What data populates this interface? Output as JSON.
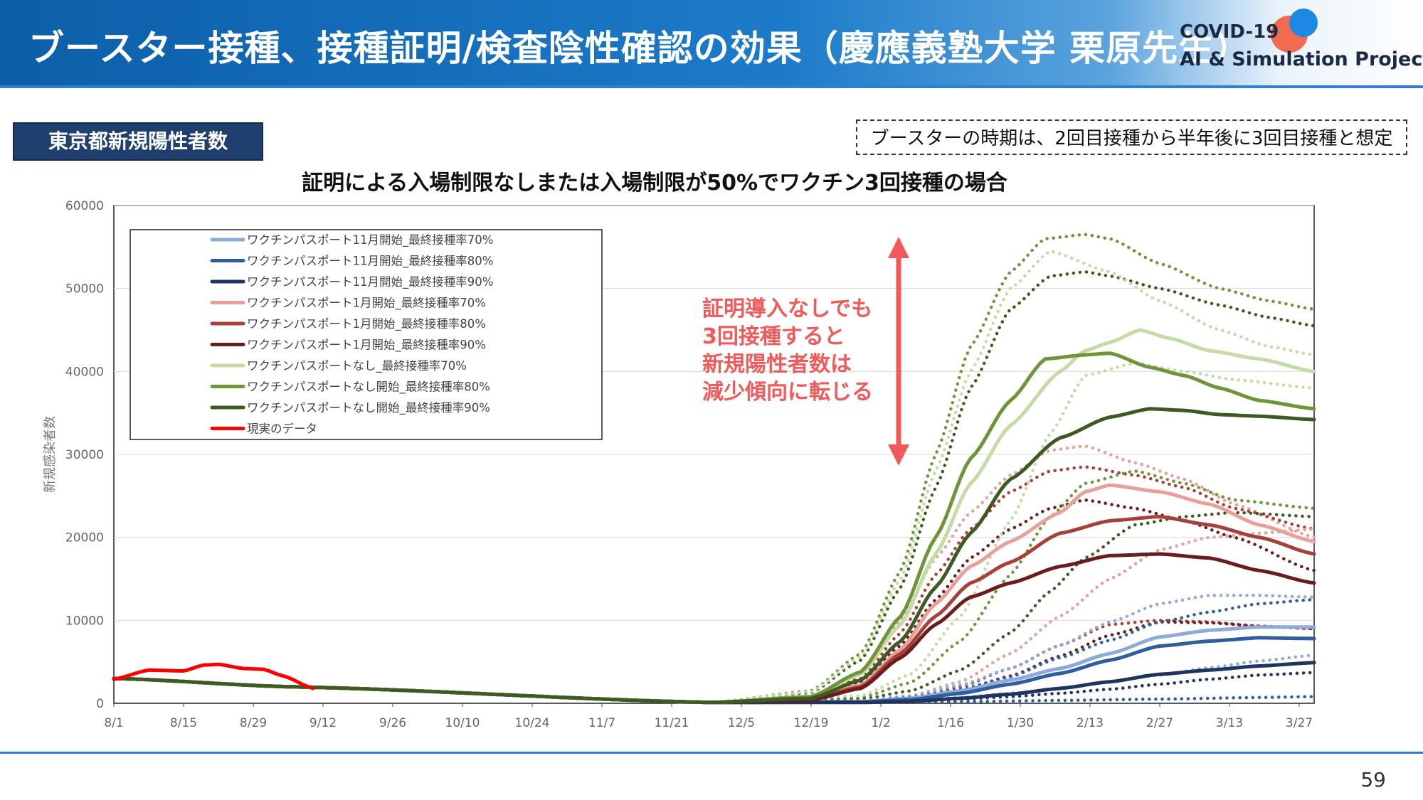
{
  "header": {
    "title": "ブースター接種、接種証明/検査陰性確認の効果（慶應義塾大学 栗原先生）",
    "logo_line1": "COVID-19",
    "logo_line2": "AI & Simulation Project"
  },
  "section_tag": "東京都新規陽性者数",
  "note": "ブースターの時期は、2回目接種から半年後に3回目接種と想定",
  "annotation": {
    "lines": [
      "証明導入なしでも",
      "3回接種すると",
      "新規陽性者数は",
      "減少傾向に転じる"
    ],
    "color": "#f05a5a"
  },
  "page_number": "59",
  "chart_data": {
    "type": "line",
    "title": "証明による入場制限なしまたは入場制限が50%でワクチン3回接種の場合",
    "ylabel": "新規感染者数",
    "xlabel": "",
    "ylim": [
      0,
      60000
    ],
    "yticks": [
      0,
      10000,
      20000,
      30000,
      40000,
      50000,
      60000
    ],
    "x_start": "8/1",
    "x_days": 242,
    "xtick_labels": [
      "8/1",
      "8/15",
      "8/29",
      "9/12",
      "9/26",
      "10/10",
      "10/24",
      "11/7",
      "11/21",
      "12/5",
      "12/19",
      "1/2",
      "1/16",
      "1/30",
      "2/13",
      "2/27",
      "3/13",
      "3/27"
    ],
    "legend_position": "top-left",
    "grid": true,
    "series": [
      {
        "name": "ワクチンパスポート11月開始_最終接種率70%",
        "color": "#8eaadb",
        "width": 5,
        "style": "solid",
        "x": [
          0,
          35,
          120,
          150,
          160,
          170,
          180,
          190,
          200,
          210,
          220,
          230,
          241
        ],
        "values": [
          3000,
          2000,
          100,
          200,
          600,
          1500,
          2800,
          4200,
          6000,
          8000,
          8800,
          9200,
          9200
        ]
      },
      {
        "name": "ワクチンパスポート11月開始_最終接種率80%",
        "color": "#2e5e9b",
        "width": 5,
        "style": "solid",
        "x": [
          0,
          35,
          120,
          150,
          160,
          170,
          180,
          190,
          200,
          210,
          220,
          230,
          241
        ],
        "values": [
          3000,
          2000,
          100,
          150,
          450,
          1200,
          2300,
          3600,
          5200,
          6900,
          7500,
          7900,
          7800
        ]
      },
      {
        "name": "ワクチンパスポート11月開始_最終接種率90%",
        "color": "#1f3560",
        "width": 5,
        "style": "solid",
        "x": [
          0,
          35,
          120,
          150,
          160,
          170,
          180,
          190,
          200,
          210,
          220,
          230,
          241
        ],
        "values": [
          3000,
          2000,
          100,
          100,
          250,
          600,
          1100,
          1800,
          2600,
          3500,
          4000,
          4500,
          4900
        ]
      },
      {
        "name": "ワクチンパスポート1月開始_最終接種率70%",
        "color": "#e8a09a",
        "width": 5,
        "style": "solid",
        "x": [
          0,
          35,
          120,
          140,
          150,
          158,
          165,
          172,
          180,
          190,
          195,
          200,
          210,
          220,
          230,
          241
        ],
        "values": [
          3000,
          2000,
          100,
          600,
          2200,
          6500,
          12000,
          16500,
          19500,
          23000,
          25500,
          26300,
          25500,
          24000,
          21500,
          19500
        ]
      },
      {
        "name": "ワクチンパスポート1月開始_最終接種率80%",
        "color": "#a8403a",
        "width": 5,
        "style": "solid",
        "x": [
          0,
          35,
          120,
          140,
          150,
          158,
          165,
          172,
          180,
          190,
          200,
          210,
          220,
          230,
          241
        ],
        "values": [
          3000,
          2000,
          100,
          500,
          2000,
          6000,
          10500,
          14500,
          17000,
          20500,
          22000,
          22500,
          21500,
          20000,
          18000
        ]
      },
      {
        "name": "ワクチンパスポート1月開始_最終接種率90%",
        "color": "#6b1c1c",
        "width": 5,
        "style": "solid",
        "x": [
          0,
          35,
          120,
          140,
          150,
          158,
          165,
          172,
          180,
          190,
          200,
          210,
          220,
          230,
          241
        ],
        "values": [
          3000,
          2000,
          100,
          400,
          1800,
          5500,
          9500,
          12800,
          14500,
          16500,
          17800,
          18000,
          17500,
          16000,
          14500
        ]
      },
      {
        "name": "ワクチンパスポートなし_最終接種率70%",
        "color": "#c5dba6",
        "width": 5,
        "style": "solid",
        "x": [
          0,
          35,
          120,
          140,
          150,
          158,
          165,
          172,
          180,
          190,
          195,
          200,
          206,
          212,
          220,
          230,
          241
        ],
        "values": [
          3000,
          2000,
          100,
          700,
          3500,
          9500,
          18000,
          26500,
          33500,
          40000,
          42500,
          43500,
          45000,
          44000,
          42500,
          41500,
          40000
        ]
      },
      {
        "name": "ワクチンパスポートなし開始_最終接種率80%",
        "color": "#6e9538",
        "width": 5,
        "style": "solid",
        "x": [
          0,
          35,
          120,
          140,
          150,
          158,
          165,
          172,
          180,
          187,
          195,
          200,
          208,
          215,
          222,
          230,
          241
        ],
        "values": [
          3000,
          2000,
          100,
          800,
          3800,
          10500,
          20000,
          29500,
          36500,
          41500,
          42000,
          42200,
          40500,
          39500,
          38000,
          36500,
          35500
        ]
      },
      {
        "name": "ワクチンパスポートなし開始_最終接種率90%",
        "color": "#3e5a22",
        "width": 5,
        "style": "solid",
        "x": [
          0,
          35,
          120,
          140,
          150,
          158,
          165,
          172,
          180,
          190,
          200,
          208,
          215,
          222,
          230,
          241
        ],
        "values": [
          3000,
          2000,
          100,
          600,
          2800,
          7500,
          14000,
          20500,
          27000,
          32000,
          34500,
          35500,
          35300,
          34800,
          34600,
          34200
        ]
      },
      {
        "name": "現実のデータ",
        "color": "#ff0000",
        "width": 5,
        "style": "solid",
        "x": [
          0,
          7,
          14,
          18,
          21,
          26,
          30,
          34,
          40
        ],
        "values": [
          2900,
          4000,
          3900,
          4600,
          4700,
          4200,
          4100,
          3300,
          1800
        ]
      },
      {
        "name": "",
        "color": "#6e9538",
        "width": 5,
        "style": "dotted",
        "x": [
          0,
          35,
          120,
          140,
          150,
          158,
          165,
          172,
          180,
          187,
          195,
          200,
          210,
          222,
          232,
          241
        ],
        "values": [
          3000,
          2000,
          100,
          1500,
          6000,
          16000,
          30000,
          43000,
          52000,
          56000,
          56500,
          56000,
          53000,
          50000,
          48500,
          47500
        ]
      },
      {
        "name": "",
        "color": "#3e5a22",
        "width": 5,
        "style": "dotted",
        "x": [
          0,
          35,
          120,
          140,
          150,
          158,
          165,
          172,
          180,
          188,
          195,
          200,
          210,
          222,
          232,
          241
        ],
        "values": [
          3000,
          2000,
          100,
          1300,
          5200,
          14000,
          26000,
          38000,
          47500,
          51500,
          52000,
          51500,
          50000,
          48000,
          46500,
          45500
        ]
      },
      {
        "name": "",
        "color": "#c5dba6",
        "width": 5,
        "style": "dotted",
        "x": [
          0,
          35,
          120,
          140,
          150,
          158,
          165,
          172,
          180,
          188,
          200,
          210,
          222,
          232,
          241
        ],
        "values": [
          3000,
          2000,
          100,
          1400,
          5600,
          15000,
          28000,
          40000,
          50000,
          54500,
          52000,
          48500,
          45000,
          43000,
          42000
        ]
      },
      {
        "name": "",
        "color": "#e8a09a",
        "width": 5,
        "style": "dotted",
        "x": [
          0,
          35,
          120,
          140,
          150,
          158,
          165,
          172,
          180,
          188,
          195,
          205,
          215,
          225,
          241
        ],
        "values": [
          3000,
          2000,
          100,
          900,
          3500,
          10000,
          17500,
          23000,
          27500,
          30500,
          31000,
          29000,
          27000,
          24000,
          20000
        ]
      },
      {
        "name": "",
        "color": "#a8403a",
        "width": 5,
        "style": "dotted",
        "x": [
          0,
          35,
          120,
          140,
          150,
          158,
          165,
          172,
          180,
          188,
          195,
          205,
          215,
          225,
          241
        ],
        "values": [
          3000,
          2000,
          100,
          800,
          3000,
          8500,
          15500,
          21000,
          25500,
          28000,
          28500,
          27500,
          26000,
          23500,
          21000
        ]
      },
      {
        "name": "",
        "color": "#6b1c1c",
        "width": 5,
        "style": "dotted",
        "x": [
          0,
          35,
          120,
          140,
          150,
          158,
          165,
          172,
          180,
          188,
          195,
          205,
          215,
          225,
          241
        ],
        "values": [
          3000,
          2000,
          100,
          600,
          2500,
          7000,
          12500,
          17500,
          21000,
          23500,
          24500,
          23500,
          22000,
          20000,
          16000
        ]
      },
      {
        "name": "",
        "color": "#6e9538",
        "width": 5,
        "style": "dotted",
        "x": [
          0,
          35,
          120,
          150,
          160,
          170,
          180,
          188,
          195,
          205,
          215,
          225,
          241
        ],
        "values": [
          3000,
          2000,
          100,
          700,
          2500,
          7500,
          15500,
          22500,
          26500,
          28000,
          26500,
          24500,
          23500
        ]
      },
      {
        "name": "",
        "color": "#3e5a22",
        "width": 5,
        "style": "dotted",
        "x": [
          0,
          35,
          120,
          150,
          160,
          170,
          180,
          188,
          195,
          205,
          215,
          225,
          241
        ],
        "values": [
          3000,
          2000,
          100,
          500,
          1500,
          4000,
          8500,
          13500,
          17500,
          21500,
          22500,
          23000,
          22500
        ]
      },
      {
        "name": "",
        "color": "#c5dba6",
        "width": 5,
        "style": "dotted",
        "x": [
          0,
          35,
          120,
          150,
          160,
          170,
          180,
          188,
          195,
          205,
          215,
          225,
          241
        ],
        "values": [
          3000,
          2000,
          100,
          900,
          3500,
          10500,
          22000,
          32500,
          39500,
          41000,
          40000,
          39000,
          38000
        ]
      },
      {
        "name": "",
        "color": "#e8a09a",
        "width": 5,
        "style": "dotted",
        "x": [
          0,
          35,
          120,
          150,
          160,
          170,
          180,
          190,
          200,
          210,
          220,
          230,
          241
        ],
        "values": [
          3000,
          2000,
          100,
          300,
          900,
          2600,
          6000,
          10500,
          15000,
          18500,
          20000,
          20500,
          21000
        ]
      },
      {
        "name": "",
        "color": "#a8403a",
        "width": 5,
        "style": "dotted",
        "x": [
          0,
          35,
          120,
          150,
          160,
          170,
          180,
          190,
          200,
          210,
          220,
          230,
          241
        ],
        "values": [
          3000,
          2000,
          100,
          250,
          700,
          2000,
          4200,
          7000,
          9500,
          10000,
          9800,
          9300,
          9000
        ]
      },
      {
        "name": "",
        "color": "#6b1c1c",
        "width": 5,
        "style": "dotted",
        "x": [
          0,
          35,
          120,
          150,
          160,
          170,
          180,
          190,
          200,
          210,
          220,
          230,
          241
        ],
        "values": [
          3000,
          2000,
          100,
          200,
          550,
          1500,
          3300,
          5700,
          8200,
          9800,
          9700,
          9300,
          9000
        ]
      },
      {
        "name": "",
        "color": "#8eaadb",
        "width": 5,
        "style": "dotted",
        "x": [
          0,
          35,
          120,
          150,
          160,
          170,
          180,
          190,
          200,
          210,
          220,
          230,
          241
        ],
        "values": [
          3000,
          2000,
          100,
          300,
          900,
          2200,
          4200,
          7000,
          9800,
          12000,
          13000,
          13000,
          12800
        ]
      },
      {
        "name": "",
        "color": "#2e5e9b",
        "width": 5,
        "style": "dotted",
        "x": [
          0,
          35,
          120,
          150,
          160,
          170,
          180,
          190,
          200,
          210,
          220,
          230,
          241
        ],
        "values": [
          3000,
          2000,
          100,
          250,
          700,
          1700,
          3200,
          5500,
          7600,
          9800,
          11000,
          12000,
          12500
        ]
      },
      {
        "name": "",
        "color": "#1f3560",
        "width": 5,
        "style": "dotted",
        "x": [
          0,
          35,
          120,
          150,
          160,
          170,
          180,
          190,
          200,
          210,
          220,
          230,
          241
        ],
        "values": [
          3000,
          2000,
          100,
          100,
          250,
          500,
          800,
          1200,
          1700,
          2300,
          2900,
          3400,
          3700
        ]
      },
      {
        "name": "",
        "color": "#8eaadb",
        "width": 5,
        "style": "dotted",
        "x": [
          0,
          35,
          120,
          150,
          160,
          170,
          180,
          190,
          200,
          210,
          220,
          230,
          241
        ],
        "values": [
          3000,
          2000,
          100,
          150,
          350,
          700,
          1200,
          1800,
          2600,
          3400,
          4300,
          5100,
          5800
        ]
      },
      {
        "name": "",
        "color": "#2e5e9b",
        "width": 5,
        "style": "dotted",
        "x": [
          0,
          35,
          120,
          150,
          170,
          190,
          210,
          230,
          241
        ],
        "values": [
          3000,
          2000,
          100,
          100,
          200,
          350,
          500,
          700,
          800
        ]
      }
    ]
  }
}
